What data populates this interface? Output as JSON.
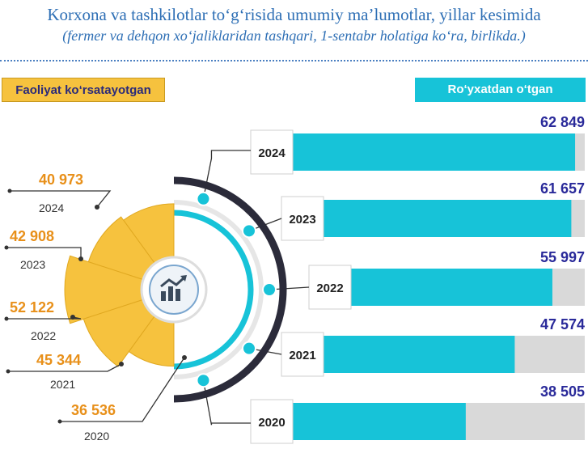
{
  "title": "Korxona va tashkilotlar to‘g‘risida umumiy ma’lumotlar, yillar kesimida",
  "subtitle": "(fermer va dehqon xo‘jaliklaridan tashqari, 1-sentabr holatiga ko‘ra, birlikda.)",
  "left_label": "Faoliyat ko‘rsatayotgan",
  "right_label": "Ro‘yxatdan o‘tgan",
  "center_icon": "chart-trend-icon",
  "colors": {
    "accent_yellow": "#f6c23e",
    "accent_cyan": "#17c3d8",
    "value_text": "#2a2a9a",
    "active_text": "#e8901a",
    "bar_track": "#d9d9d9",
    "ring_dark": "#2b2b3a"
  },
  "chart_data": [
    {
      "type": "bar",
      "orientation": "horizontal",
      "categories": [
        "2024",
        "2023",
        "2022",
        "2021",
        "2020"
      ],
      "values": [
        62849,
        61657,
        55997,
        47574,
        38505
      ],
      "value_labels": [
        "62 849",
        "61 657",
        "55 997",
        "47 574",
        "38 505"
      ],
      "legend_label": "Ro‘yxatdan o‘tgan"
    },
    {
      "type": "pie",
      "categories": [
        "2024",
        "2023",
        "2022",
        "2021",
        "2020"
      ],
      "values": [
        40973,
        42908,
        52122,
        45344,
        36536
      ],
      "value_labels": [
        "40 973",
        "42 908",
        "52 122",
        "45 344",
        "36 536"
      ],
      "legend_label": "Faoliyat ko‘rsatayotgan"
    }
  ]
}
